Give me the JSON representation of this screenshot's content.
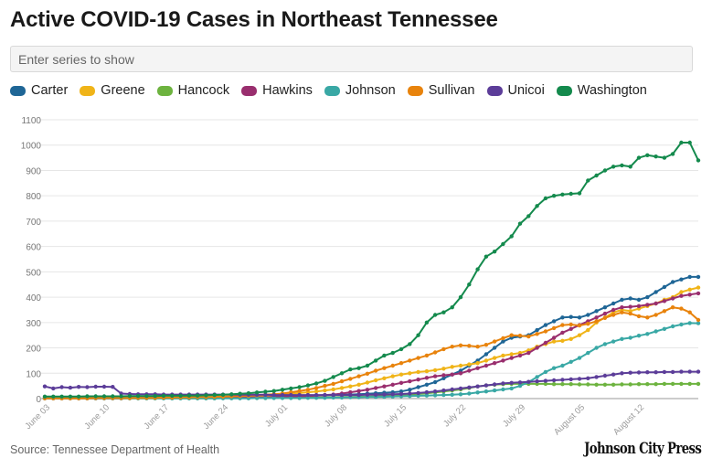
{
  "header": {
    "title": "Active COVID-19 Cases in Northeast Tennessee"
  },
  "search": {
    "placeholder": "Enter series to show"
  },
  "footer": {
    "source": "Source: Tennessee Department of Health",
    "brand": "Johnson City Press"
  },
  "chart_data": {
    "type": "line",
    "title": "Active COVID-19 Cases in Northeast Tennessee",
    "xlabel": "",
    "ylabel": "",
    "ylim": [
      0,
      1100
    ],
    "yticks": [
      0,
      100,
      200,
      300,
      400,
      500,
      600,
      700,
      800,
      900,
      1000,
      1100
    ],
    "x_tick_labels": [
      {
        "label": "June 03",
        "day": 0
      },
      {
        "label": "June 10",
        "day": 7
      },
      {
        "label": "June 17",
        "day": 14
      },
      {
        "label": "June 24",
        "day": 21
      },
      {
        "label": "July 01",
        "day": 28
      },
      {
        "label": "July 08",
        "day": 35
      },
      {
        "label": "July 15",
        "day": 42
      },
      {
        "label": "July 22",
        "day": 49
      },
      {
        "label": "July 29",
        "day": 56
      },
      {
        "label": "August 05",
        "day": 63
      },
      {
        "label": "August 12",
        "day": 70
      }
    ],
    "x_range": [
      0,
      77
    ],
    "series": [
      {
        "name": "Carter",
        "color": "#1f6696",
        "values": [
          1,
          1,
          1,
          1,
          1,
          1,
          2,
          2,
          3,
          3,
          3,
          3,
          3,
          3,
          3,
          4,
          4,
          4,
          4,
          5,
          5,
          5,
          6,
          6,
          7,
          7,
          8,
          8,
          9,
          10,
          10,
          11,
          12,
          13,
          14,
          15,
          16,
          17,
          19,
          21,
          23,
          25,
          28,
          35,
          45,
          55,
          65,
          80,
          95,
          110,
          130,
          150,
          175,
          200,
          225,
          240,
          245,
          250,
          270,
          290,
          305,
          320,
          322,
          320,
          330,
          345,
          360,
          375,
          390,
          395,
          390,
          400,
          420,
          440,
          460,
          470,
          480,
          480
        ]
      },
      {
        "name": "Greene",
        "color": "#f0b418",
        "values": [
          2,
          2,
          2,
          2,
          2,
          3,
          3,
          3,
          3,
          3,
          3,
          3,
          3,
          4,
          4,
          4,
          4,
          5,
          5,
          5,
          6,
          6,
          7,
          8,
          9,
          10,
          12,
          14,
          16,
          19,
          22,
          25,
          28,
          32,
          36,
          42,
          48,
          55,
          63,
          72,
          80,
          88,
          95,
          100,
          105,
          108,
          112,
          118,
          125,
          130,
          135,
          140,
          150,
          160,
          170,
          175,
          180,
          190,
          205,
          215,
          225,
          228,
          235,
          250,
          270,
          300,
          320,
          340,
          350,
          345,
          355,
          365,
          375,
          390,
          400,
          420,
          430,
          438
        ]
      },
      {
        "name": "Hancock",
        "color": "#6db33f",
        "values": [
          1,
          1,
          1,
          1,
          1,
          1,
          1,
          1,
          1,
          1,
          1,
          1,
          1,
          1,
          1,
          1,
          1,
          1,
          1,
          1,
          1,
          2,
          2,
          2,
          2,
          2,
          2,
          3,
          3,
          3,
          3,
          4,
          4,
          5,
          5,
          6,
          6,
          7,
          8,
          9,
          10,
          12,
          14,
          16,
          18,
          21,
          24,
          28,
          32,
          36,
          42,
          48,
          52,
          55,
          57,
          58,
          58,
          58,
          58,
          58,
          57,
          57,
          57,
          56,
          56,
          55,
          55,
          55,
          56,
          56,
          57,
          57,
          57,
          58,
          58,
          58,
          58,
          58
        ]
      },
      {
        "name": "Hawkins",
        "color": "#992e6e",
        "values": [
          1,
          1,
          1,
          1,
          1,
          1,
          1,
          1,
          1,
          1,
          2,
          2,
          2,
          2,
          2,
          2,
          3,
          3,
          3,
          3,
          3,
          4,
          4,
          4,
          5,
          5,
          5,
          6,
          7,
          8,
          9,
          10,
          12,
          14,
          16,
          20,
          25,
          30,
          35,
          42,
          48,
          55,
          62,
          68,
          75,
          82,
          88,
          92,
          95,
          100,
          110,
          120,
          130,
          140,
          150,
          160,
          170,
          180,
          200,
          220,
          240,
          260,
          275,
          290,
          305,
          320,
          335,
          350,
          360,
          362,
          365,
          370,
          375,
          385,
          395,
          405,
          410,
          415
        ]
      },
      {
        "name": "Johnson",
        "color": "#39a8a5",
        "values": [
          1,
          1,
          1,
          1,
          1,
          1,
          1,
          1,
          1,
          1,
          1,
          1,
          1,
          1,
          1,
          1,
          1,
          1,
          1,
          1,
          1,
          1,
          1,
          1,
          1,
          2,
          2,
          2,
          2,
          2,
          2,
          3,
          3,
          3,
          4,
          4,
          5,
          5,
          6,
          6,
          7,
          8,
          9,
          10,
          11,
          12,
          13,
          14,
          15,
          17,
          20,
          24,
          28,
          32,
          36,
          40,
          50,
          65,
          85,
          105,
          120,
          130,
          145,
          160,
          180,
          200,
          215,
          225,
          235,
          240,
          248,
          255,
          265,
          275,
          285,
          292,
          298,
          297
        ]
      },
      {
        "name": "Sullivan",
        "color": "#e8830c",
        "values": [
          1,
          1,
          1,
          1,
          1,
          1,
          2,
          2,
          2,
          2,
          2,
          3,
          3,
          3,
          4,
          4,
          5,
          5,
          6,
          6,
          7,
          8,
          9,
          10,
          11,
          13,
          15,
          17,
          20,
          25,
          30,
          35,
          42,
          50,
          58,
          68,
          78,
          88,
          98,
          110,
          120,
          130,
          140,
          150,
          160,
          170,
          182,
          195,
          205,
          210,
          208,
          205,
          212,
          225,
          238,
          250,
          248,
          245,
          255,
          265,
          278,
          290,
          292,
          288,
          295,
          305,
          318,
          330,
          340,
          335,
          325,
          320,
          330,
          345,
          360,
          355,
          340,
          310
        ]
      },
      {
        "name": "Unicoi",
        "color": "#5c3d99",
        "values": [
          48,
          40,
          45,
          43,
          46,
          45,
          47,
          47,
          46,
          20,
          18,
          17,
          17,
          17,
          16,
          16,
          16,
          16,
          16,
          16,
          16,
          16,
          16,
          15,
          15,
          15,
          15,
          14,
          14,
          14,
          14,
          14,
          14,
          14,
          14,
          14,
          14,
          14,
          15,
          15,
          16,
          17,
          18,
          20,
          22,
          25,
          28,
          32,
          36,
          40,
          44,
          48,
          52,
          56,
          60,
          62,
          64,
          66,
          68,
          70,
          72,
          74,
          76,
          78,
          80,
          85,
          90,
          95,
          100,
          102,
          103,
          104,
          104,
          105,
          105,
          106,
          106,
          106
        ]
      },
      {
        "name": "Washington",
        "color": "#148a4d",
        "values": [
          8,
          8,
          8,
          8,
          8,
          9,
          9,
          9,
          9,
          9,
          10,
          10,
          10,
          10,
          11,
          11,
          11,
          12,
          12,
          13,
          14,
          15,
          17,
          19,
          21,
          24,
          27,
          30,
          35,
          40,
          45,
          52,
          60,
          70,
          85,
          100,
          115,
          120,
          130,
          150,
          170,
          180,
          195,
          215,
          250,
          300,
          330,
          340,
          360,
          400,
          450,
          510,
          560,
          580,
          610,
          640,
          690,
          720,
          760,
          790,
          800,
          805,
          808,
          810,
          860,
          880,
          900,
          915,
          920,
          915,
          950,
          960,
          955,
          950,
          965,
          1010,
          1010,
          940
        ]
      }
    ]
  }
}
